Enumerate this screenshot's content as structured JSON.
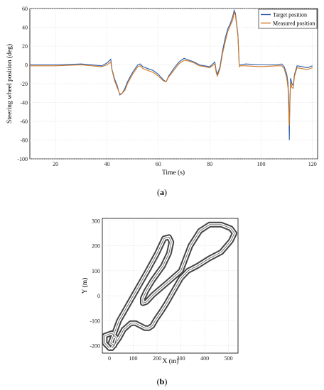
{
  "chart_data": [
    {
      "type": "line",
      "caption_pre": "(",
      "caption": "a",
      "caption_post": ")",
      "xlabel": "Time (s)",
      "ylabel": "Steering wheel position (deg)",
      "xlim": [
        10,
        122
      ],
      "ylim": [
        -100,
        60
      ],
      "xticks": [
        20,
        40,
        60,
        80,
        100,
        120
      ],
      "yticks": [
        -100,
        -80,
        -60,
        -40,
        -20,
        0,
        20,
        40,
        60
      ],
      "grid": true,
      "legend": "top-right",
      "series": [
        {
          "name": "Target position",
          "color": "#2a5caa",
          "x": [
            10,
            20,
            30,
            38,
            40,
            41.5,
            42,
            43,
            44,
            45,
            46,
            47,
            48,
            50,
            52,
            53,
            54,
            56,
            58,
            60,
            62,
            63,
            64,
            66,
            68,
            70,
            72,
            74,
            76,
            78,
            80,
            82,
            82.5,
            83,
            84,
            85,
            86,
            87,
            88,
            89,
            89.5,
            90,
            91,
            91.5,
            92,
            94,
            100,
            106,
            108,
            109,
            110,
            110.5,
            110.8,
            111,
            111.2,
            111.5,
            112,
            112.5,
            113,
            114,
            116,
            118,
            120
          ],
          "y": [
            0,
            0,
            1,
            -1,
            2,
            6,
            -5,
            -15,
            -22,
            -32,
            -30,
            -25,
            -18,
            -8,
            0,
            1,
            -2,
            -4,
            -6,
            -10,
            -16,
            -18,
            -12,
            -4,
            3,
            7,
            5,
            3,
            0,
            -1,
            -2,
            3,
            -6,
            -10,
            -2,
            15,
            28,
            38,
            44,
            52,
            58,
            55,
            32,
            0,
            0,
            1,
            0,
            0,
            1,
            -2,
            -10,
            -20,
            -40,
            -80,
            -40,
            -14,
            -20,
            -22,
            -10,
            -1,
            -2,
            -3,
            -1
          ]
        },
        {
          "name": "Measured position",
          "color": "#d07820",
          "x": [
            10,
            20,
            30,
            38,
            40,
            41.5,
            42,
            43,
            44,
            45,
            46,
            47,
            48,
            50,
            52,
            53,
            54,
            56,
            58,
            60,
            62,
            63,
            64,
            66,
            68,
            70,
            72,
            74,
            76,
            78,
            80,
            82,
            82.5,
            83,
            84,
            85,
            86,
            87,
            88,
            89,
            89.5,
            90,
            91,
            91.5,
            92,
            94,
            100,
            106,
            108,
            109,
            110,
            110.5,
            110.8,
            111,
            111.2,
            111.5,
            112,
            112.5,
            113,
            114,
            116,
            118,
            120
          ],
          "y": [
            -1,
            -1,
            0,
            -2,
            0,
            3,
            -6,
            -17,
            -24,
            -31,
            -30,
            -27,
            -20,
            -10,
            -2,
            -1,
            -4,
            -6,
            -8,
            -12,
            -17,
            -18,
            -13,
            -6,
            1,
            5,
            4,
            2,
            -1,
            -2,
            -3,
            1,
            -8,
            -12,
            -4,
            12,
            24,
            35,
            42,
            48,
            56,
            53,
            30,
            -2,
            -1,
            -1,
            -2,
            -1,
            -1,
            -4,
            -14,
            -25,
            -50,
            -65,
            -45,
            -18,
            -24,
            -25,
            -12,
            -3,
            -4,
            -5,
            -3
          ]
        }
      ]
    },
    {
      "type": "line",
      "caption_pre": "(",
      "caption": "b",
      "caption_post": ")",
      "xlabel": "X (m)",
      "ylabel": "Y (m)",
      "xlim": [
        -30,
        540
      ],
      "ylim": [
        -230,
        310
      ],
      "xticks": [
        0,
        100,
        200,
        300,
        400,
        500
      ],
      "yticks": [
        -200,
        -100,
        0,
        100,
        200,
        300
      ],
      "grid": true,
      "series": [
        {
          "color": "#444444",
          "x": [
            0,
            -20,
            -20,
            10,
            30,
            20,
            5,
            40,
            100,
            160,
            200,
            230,
            250,
            260,
            250,
            225,
            180,
            155,
            140,
            140,
            155,
            185,
            240,
            300,
            340,
            380,
            420,
            470,
            510,
            525,
            510,
            470,
            420,
            370,
            330,
            300,
            270,
            240,
            220,
            195,
            180,
            165,
            150,
            130,
            110,
            90,
            60,
            40,
            10
          ],
          "y": [
            -210,
            -190,
            -160,
            -150,
            -170,
            -200,
            -190,
            -100,
            0,
            100,
            170,
            230,
            235,
            215,
            170,
            120,
            60,
            20,
            -10,
            -30,
            -25,
            5,
            50,
            100,
            200,
            260,
            285,
            285,
            270,
            250,
            220,
            175,
            150,
            120,
            100,
            70,
            20,
            -30,
            -60,
            -95,
            -120,
            -130,
            -130,
            -120,
            -110,
            -110,
            -135,
            -170,
            -210
          ]
        }
      ]
    }
  ]
}
